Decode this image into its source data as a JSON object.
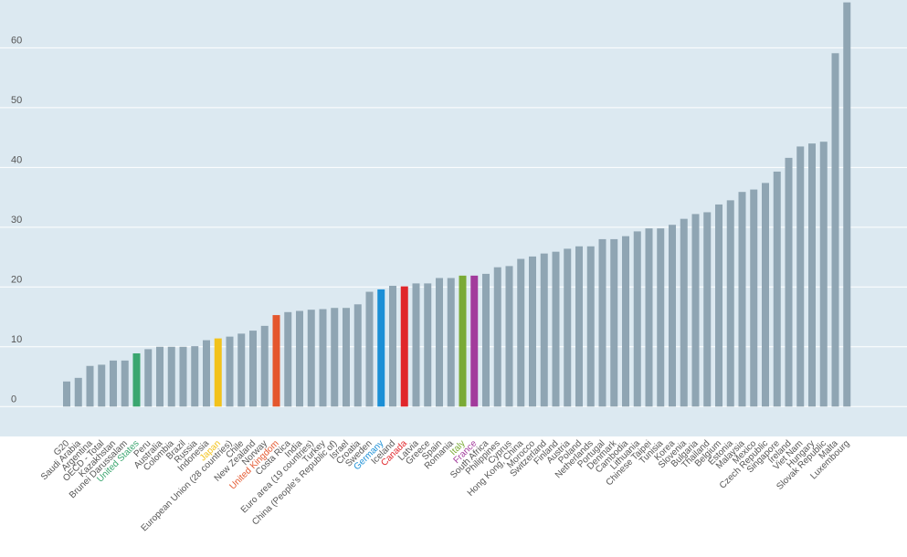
{
  "chart_data": {
    "type": "bar",
    "title": "",
    "xlabel": "",
    "ylabel": "",
    "ylim": [
      -5,
      68
    ],
    "y_ticks": [
      0,
      10,
      20,
      30,
      40,
      50,
      60
    ],
    "grid": true,
    "legend": "none",
    "colors": {
      "background": "#dce9f1",
      "default_bar": "#8fa5b3",
      "gridline": "#ffffff",
      "default_label": "#555555",
      "highlights": {
        "United States": "#3aa66f",
        "Japan": "#f2c21b",
        "United Kingdom": "#e4572e",
        "Germany": "#1b8fd6",
        "Canada": "#e0262b",
        "Italy": "#7aaa35",
        "France": "#a23b9c"
      }
    },
    "categories": [
      "G20",
      "Saudi Arabia",
      "Argentina",
      "OECD - Total",
      "Kazakhstan",
      "Brunei Darussalam",
      "United States",
      "Peru",
      "Australia",
      "Colombia",
      "Brazil",
      "Russia",
      "Indonesia",
      "Japan",
      "European Union (28 countries)",
      "Chile",
      "New Zealand",
      "Norway",
      "United Kingdom",
      "Costa Rica",
      "India",
      "Euro area (19 countries)",
      "Turkey",
      "China (People's Republic of)",
      "Israel",
      "Croatia",
      "Sweden",
      "Germany",
      "Iceland",
      "Canada",
      "Latvia",
      "Greece",
      "Spain",
      "Romania",
      "Italy",
      "France",
      "South Africa",
      "Philippines",
      "Cyprus",
      "Hong Kong, China",
      "Morocco",
      "Switzerland",
      "Finland",
      "Austria",
      "Poland",
      "Netherlands",
      "Portugal",
      "Denmark",
      "Cambodia",
      "Lithuania",
      "Chinese Taipei",
      "Tunisia",
      "Korea",
      "Slovenia",
      "Bulgaria",
      "Thailand",
      "Belgium",
      "Estonia",
      "Malaysia",
      "Mexico",
      "Czech Republic",
      "Singapore",
      "Ireland",
      "Viet Nam",
      "Hungary",
      "Slovak Republic",
      "Malta",
      "Luxembourg"
    ],
    "values": [
      4.2,
      4.8,
      6.8,
      7.0,
      7.7,
      7.7,
      8.9,
      9.6,
      10.0,
      10.0,
      10.0,
      10.1,
      11.1,
      11.4,
      11.7,
      12.2,
      12.7,
      13.5,
      15.3,
      15.8,
      16.0,
      16.2,
      16.3,
      16.5,
      16.5,
      17.1,
      19.2,
      19.6,
      20.2,
      20.1,
      20.6,
      20.6,
      21.5,
      21.5,
      21.9,
      21.9,
      22.2,
      23.3,
      23.5,
      24.7,
      25.1,
      25.6,
      25.9,
      26.4,
      26.8,
      26.8,
      28.0,
      28.0,
      28.5,
      29.3,
      29.8,
      29.8,
      30.4,
      31.4,
      32.2,
      32.5,
      33.8,
      34.5,
      35.9,
      36.3,
      37.4,
      39.3,
      41.6,
      43.5,
      44.0,
      44.3,
      59.1,
      67.6
    ]
  }
}
